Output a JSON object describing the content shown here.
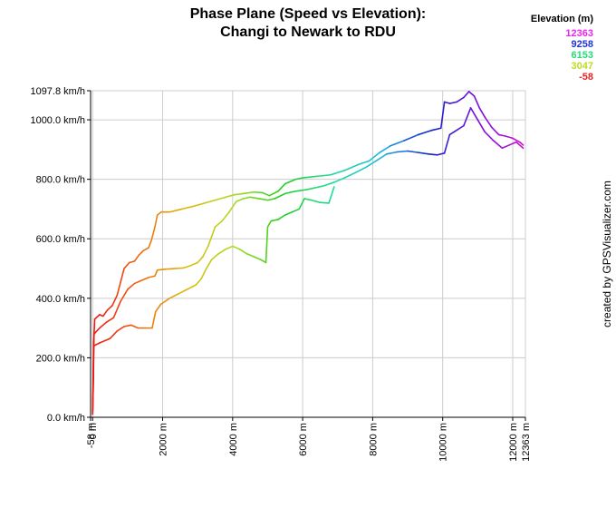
{
  "chart_data": {
    "type": "line",
    "title": "Phase Plane (Speed vs Elevation):",
    "subtitle": "Changi to Newark to RDU",
    "xlabel": "",
    "ylabel": "",
    "xlim": [
      -58,
      12363
    ],
    "ylim": [
      0,
      1097.8
    ],
    "x_unit": "m",
    "y_unit": "km/h",
    "x_ticks": [
      {
        "value": -58,
        "label": "-58 m"
      },
      {
        "value": 0,
        "label": "0 m"
      },
      {
        "value": 2000,
        "label": "2000 m"
      },
      {
        "value": 4000,
        "label": "4000 m"
      },
      {
        "value": 6000,
        "label": "6000 m"
      },
      {
        "value": 8000,
        "label": "8000 m"
      },
      {
        "value": 10000,
        "label": "10000 m"
      },
      {
        "value": 12000,
        "label": "12000 m"
      },
      {
        "value": 12363,
        "label": "12363 m"
      }
    ],
    "y_ticks": [
      {
        "value": 0,
        "label": "0.0 km/h"
      },
      {
        "value": 200,
        "label": "200.0 km/h"
      },
      {
        "value": 400,
        "label": "400.0 km/h"
      },
      {
        "value": 600,
        "label": "600.0 km/h"
      },
      {
        "value": 800,
        "label": "800.0 km/h"
      },
      {
        "value": 1000,
        "label": "1000.0 km/h"
      },
      {
        "value": 1097.8,
        "label": "1097.8 km/h"
      }
    ],
    "grid": true,
    "legend": {
      "title": "Elevation (m)",
      "placement": "top-right",
      "entries": [
        {
          "label": "12363",
          "color": "#ee22ee"
        },
        {
          "label": "9258",
          "color": "#2233dd"
        },
        {
          "label": "6153",
          "color": "#22dd77"
        },
        {
          "label": "3047",
          "color": "#bbdd22"
        },
        {
          "label": "-58",
          "color": "#ee2222"
        }
      ]
    },
    "color_scale": [
      "#ee1111",
      "#ee6611",
      "#ddbb11",
      "#aadd22",
      "#22cc22",
      "#22dd99",
      "#22bbdd",
      "#1122cc",
      "#7711dd",
      "#cc11cc"
    ],
    "series": [
      {
        "points": [
          [
            0,
            10
          ],
          [
            20,
            130
          ],
          [
            30,
            250
          ],
          [
            60,
            330
          ],
          [
            200,
            345
          ],
          [
            300,
            340
          ],
          [
            420,
            360
          ],
          [
            560,
            375
          ],
          [
            700,
            410
          ],
          [
            900,
            500
          ],
          [
            1050,
            520
          ],
          [
            1200,
            525
          ],
          [
            1320,
            545
          ],
          [
            1450,
            560
          ],
          [
            1600,
            570
          ],
          [
            1680,
            595
          ],
          [
            1780,
            640
          ],
          [
            1850,
            680
          ],
          [
            1960,
            690
          ],
          [
            2200,
            690
          ],
          [
            2550,
            700
          ],
          [
            2900,
            710
          ],
          [
            3200,
            720
          ],
          [
            3500,
            730
          ],
          [
            3800,
            740
          ],
          [
            4050,
            748
          ],
          [
            4300,
            752
          ],
          [
            4600,
            757
          ],
          [
            4850,
            755
          ],
          [
            5050,
            745
          ],
          [
            5300,
            760
          ],
          [
            5500,
            785
          ],
          [
            5800,
            800
          ],
          [
            6000,
            805
          ],
          [
            6400,
            810
          ],
          [
            6800,
            815
          ],
          [
            7200,
            830
          ],
          [
            7600,
            850
          ],
          [
            7900,
            862
          ],
          [
            8200,
            890
          ],
          [
            8500,
            912
          ],
          [
            8900,
            930
          ],
          [
            9300,
            950
          ],
          [
            9700,
            965
          ],
          [
            9950,
            972
          ],
          [
            10050,
            1060
          ],
          [
            10200,
            1055
          ],
          [
            10400,
            1060
          ],
          [
            10600,
            1075
          ],
          [
            10750,
            1095
          ],
          [
            10900,
            1080
          ],
          [
            11050,
            1040
          ],
          [
            11200,
            1010
          ],
          [
            11400,
            975
          ],
          [
            11600,
            950
          ],
          [
            11800,
            945
          ],
          [
            12000,
            938
          ],
          [
            12200,
            925
          ],
          [
            12300,
            915
          ]
        ]
      },
      {
        "points": [
          [
            0,
            15
          ],
          [
            15,
            90
          ],
          [
            40,
            280
          ],
          [
            200,
            300
          ],
          [
            400,
            320
          ],
          [
            600,
            335
          ],
          [
            800,
            390
          ],
          [
            1000,
            430
          ],
          [
            1200,
            450
          ],
          [
            1400,
            460
          ],
          [
            1600,
            470
          ],
          [
            1780,
            475
          ],
          [
            1850,
            495
          ],
          [
            2100,
            498
          ],
          [
            2350,
            500
          ],
          [
            2600,
            502
          ],
          [
            2800,
            510
          ],
          [
            3000,
            520
          ],
          [
            3150,
            540
          ],
          [
            3300,
            575
          ],
          [
            3500,
            640
          ],
          [
            3700,
            660
          ],
          [
            3900,
            690
          ],
          [
            4100,
            725
          ],
          [
            4300,
            735
          ],
          [
            4500,
            740
          ],
          [
            4750,
            735
          ],
          [
            5000,
            730
          ],
          [
            5200,
            735
          ],
          [
            5500,
            752
          ],
          [
            5800,
            760
          ],
          [
            6100,
            765
          ],
          [
            6300,
            770
          ],
          [
            6600,
            778
          ],
          [
            6900,
            790
          ],
          [
            7200,
            805
          ],
          [
            7500,
            822
          ],
          [
            7800,
            840
          ],
          [
            8100,
            862
          ],
          [
            8400,
            885
          ],
          [
            8700,
            892
          ],
          [
            9000,
            895
          ],
          [
            9300,
            890
          ],
          [
            9600,
            885
          ],
          [
            9850,
            882
          ],
          [
            10050,
            888
          ],
          [
            10200,
            950
          ],
          [
            10400,
            965
          ],
          [
            10600,
            980
          ],
          [
            10800,
            1040
          ],
          [
            11000,
            1000
          ],
          [
            11200,
            960
          ],
          [
            11450,
            930
          ],
          [
            11700,
            905
          ],
          [
            11900,
            915
          ],
          [
            12100,
            925
          ],
          [
            12300,
            905
          ]
        ]
      },
      {
        "points": [
          [
            0,
            20
          ],
          [
            30,
            240
          ],
          [
            200,
            250
          ],
          [
            500,
            265
          ],
          [
            700,
            290
          ],
          [
            900,
            305
          ],
          [
            1100,
            310
          ],
          [
            1300,
            300
          ],
          [
            1500,
            300
          ],
          [
            1700,
            300
          ],
          [
            1800,
            355
          ],
          [
            1950,
            380
          ],
          [
            2200,
            400
          ],
          [
            2450,
            415
          ],
          [
            2700,
            430
          ],
          [
            2950,
            445
          ],
          [
            3100,
            465
          ],
          [
            3250,
            500
          ],
          [
            3400,
            530
          ],
          [
            3600,
            550
          ],
          [
            3800,
            565
          ],
          [
            4000,
            575
          ],
          [
            4200,
            565
          ],
          [
            4400,
            550
          ],
          [
            4600,
            540
          ],
          [
            4800,
            530
          ],
          [
            4950,
            520
          ],
          [
            5000,
            640
          ],
          [
            5100,
            660
          ],
          [
            5300,
            665
          ],
          [
            5500,
            680
          ],
          [
            5700,
            690
          ],
          [
            5900,
            700
          ],
          [
            6050,
            735
          ],
          [
            6250,
            730
          ],
          [
            6500,
            722
          ],
          [
            6750,
            720
          ],
          [
            6900,
            775
          ]
        ]
      }
    ]
  },
  "credit": "created by GPSVisualizer.com"
}
